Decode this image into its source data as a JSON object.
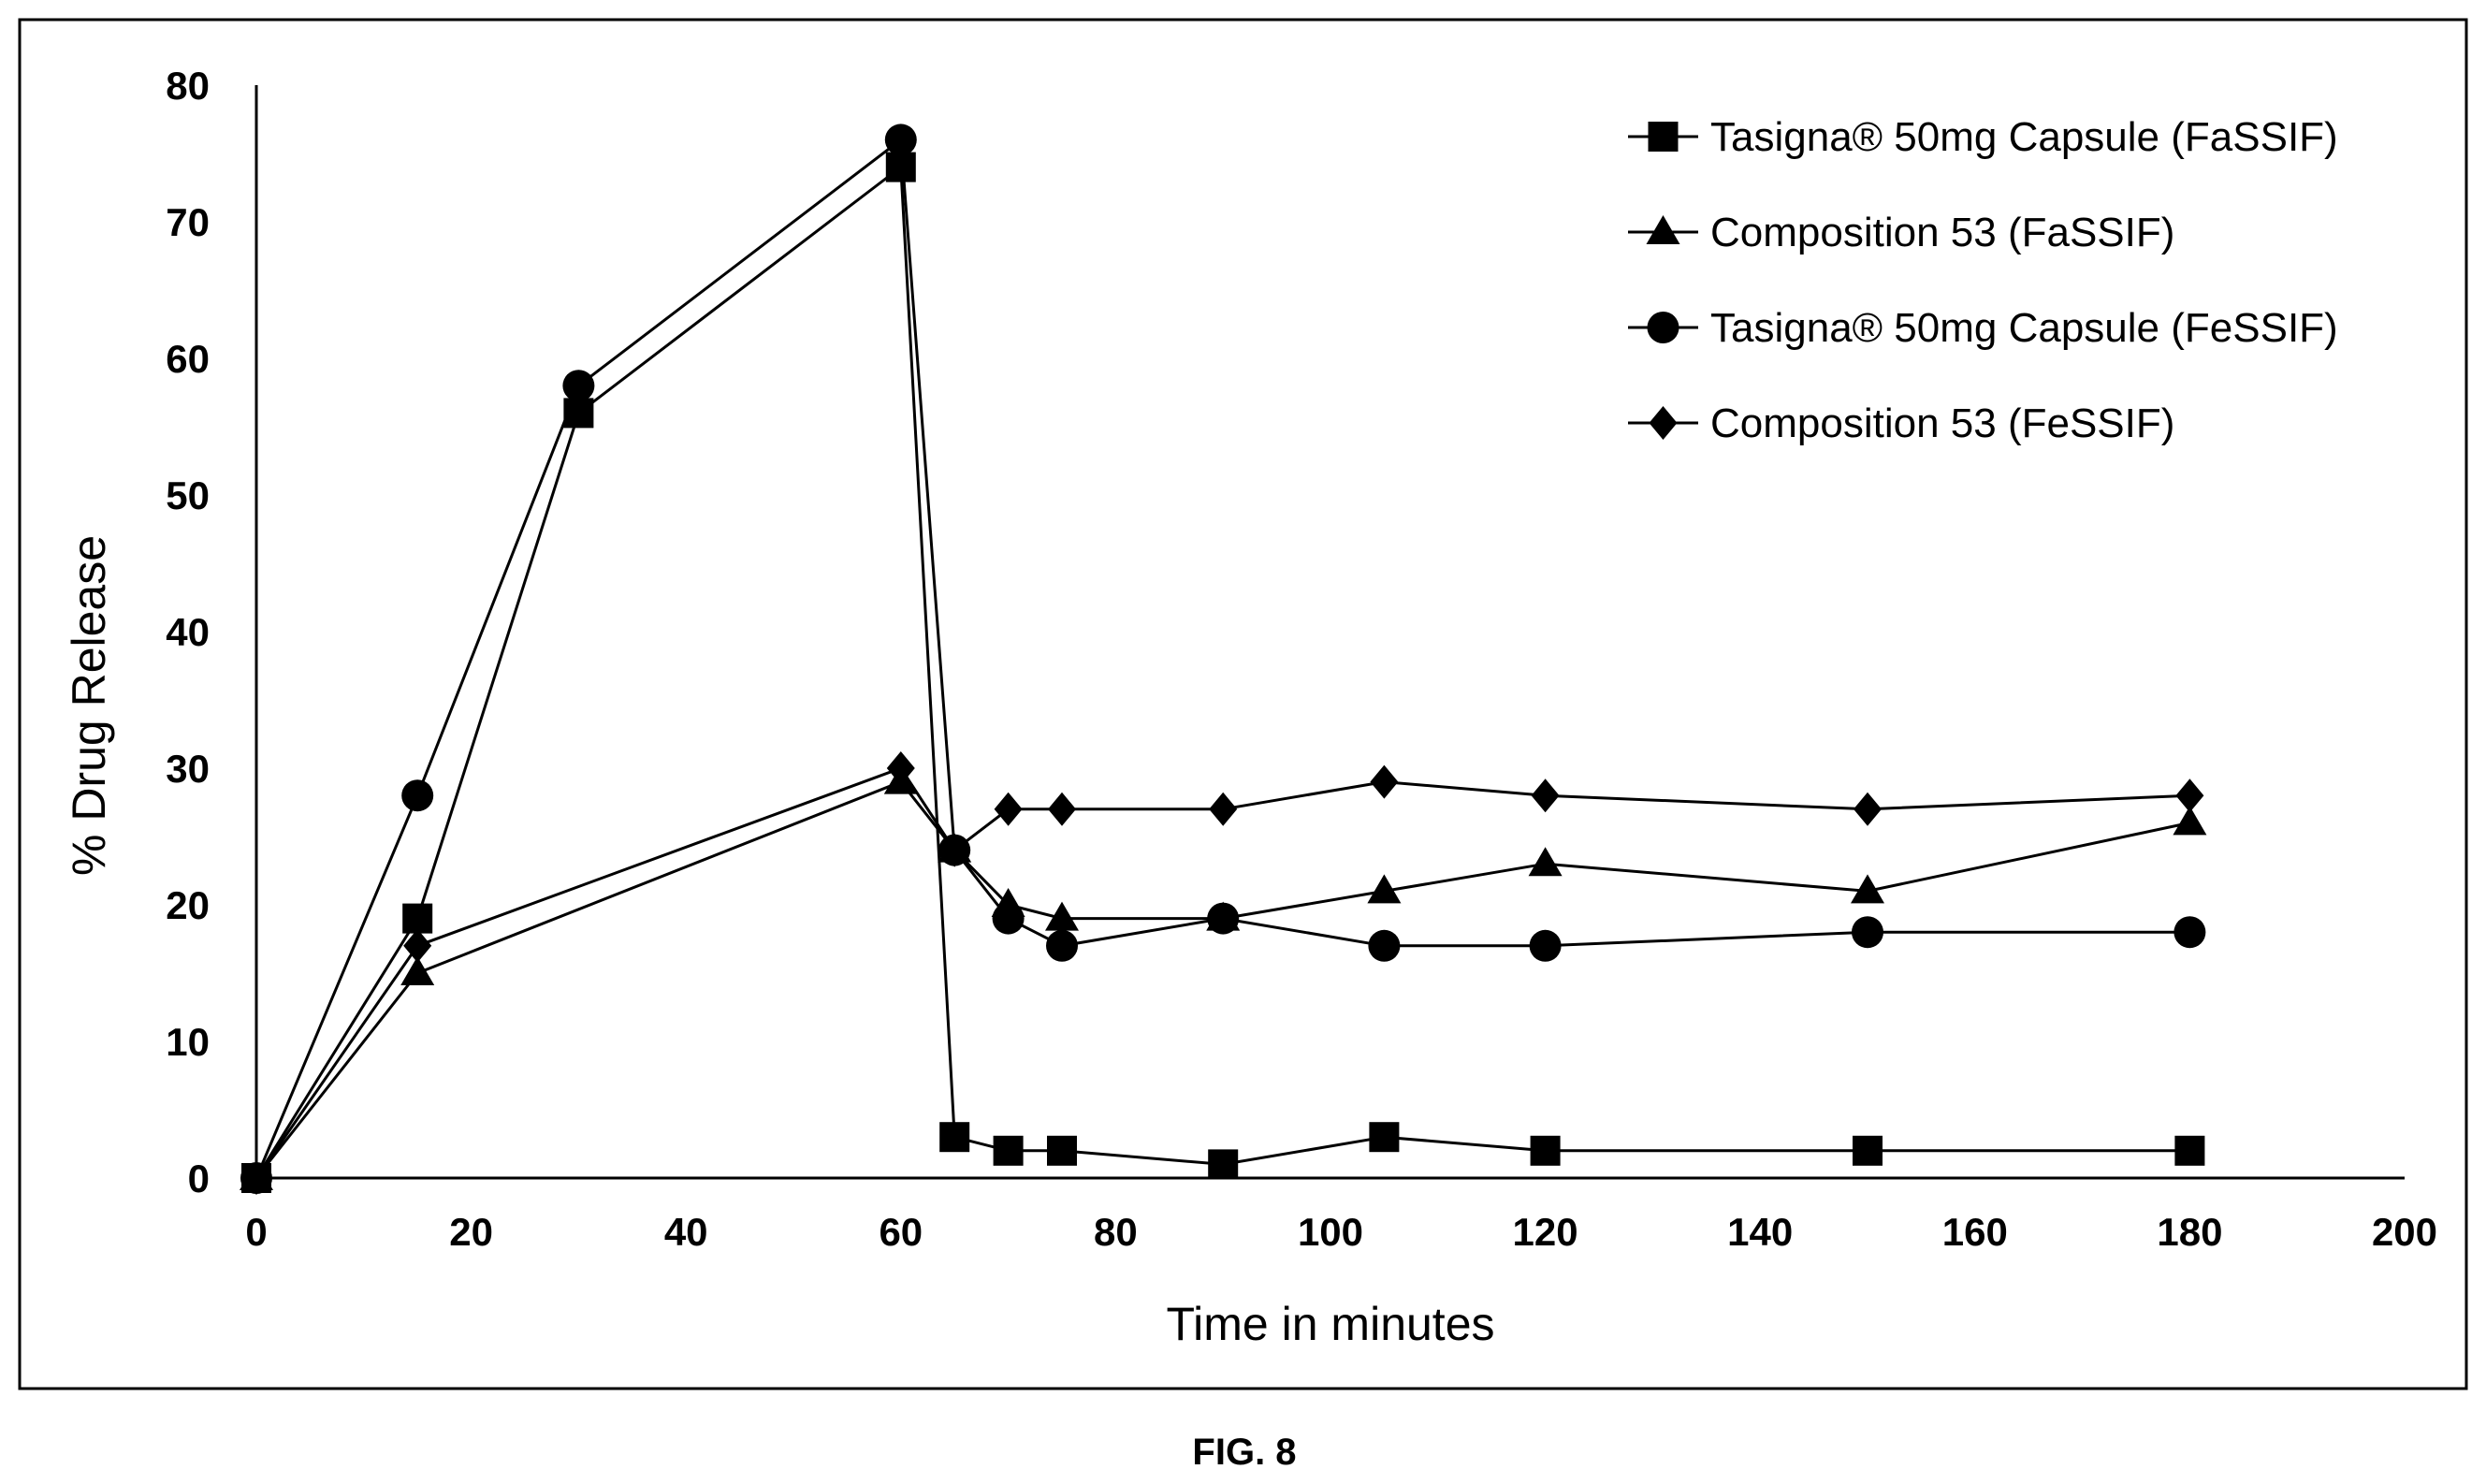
{
  "caption": "FIG. 8",
  "chart_data": {
    "type": "line",
    "title": "",
    "xlabel": "Time in minutes",
    "ylabel": "% Drug Release",
    "xlim": [
      0,
      200
    ],
    "ylim": [
      0,
      80
    ],
    "xticks": [
      0,
      20,
      40,
      60,
      80,
      100,
      120,
      140,
      160,
      180,
      200
    ],
    "yticks": [
      0,
      10,
      20,
      30,
      40,
      50,
      60,
      70,
      80
    ],
    "grid": false,
    "legend_position": "top-right",
    "series": [
      {
        "name": "Tasigna® 50mg Capsule (FaSSIF)",
        "marker": "square",
        "color": "#000000",
        "x": [
          0,
          15,
          30,
          60,
          65,
          70,
          75,
          90,
          105,
          120,
          150,
          180
        ],
        "y": [
          0,
          19,
          56,
          74,
          3,
          2,
          2,
          1,
          3,
          2,
          2,
          2
        ]
      },
      {
        "name": "Composition 53 (FaSSIF)",
        "marker": "triangle",
        "color": "#000000",
        "x": [
          0,
          15,
          60,
          65,
          70,
          75,
          90,
          105,
          120,
          150,
          180
        ],
        "y": [
          0,
          15,
          29,
          24,
          20,
          19,
          19,
          21,
          23,
          21,
          26
        ]
      },
      {
        "name": "Tasigna® 50mg Capsule (FeSSIF)",
        "marker": "circle",
        "color": "#000000",
        "x": [
          0,
          15,
          30,
          60,
          65,
          70,
          75,
          90,
          105,
          120,
          150,
          180
        ],
        "y": [
          0,
          28,
          58,
          76,
          24,
          19,
          17,
          19,
          17,
          17,
          18,
          18
        ]
      },
      {
        "name": "Composition 53 (FeSSIF)",
        "marker": "diamond",
        "color": "#000000",
        "x": [
          0,
          15,
          60,
          65,
          70,
          75,
          90,
          105,
          120,
          150,
          180
        ],
        "y": [
          0,
          17,
          30,
          24,
          27,
          27,
          27,
          29,
          28,
          27,
          28
        ]
      }
    ]
  }
}
